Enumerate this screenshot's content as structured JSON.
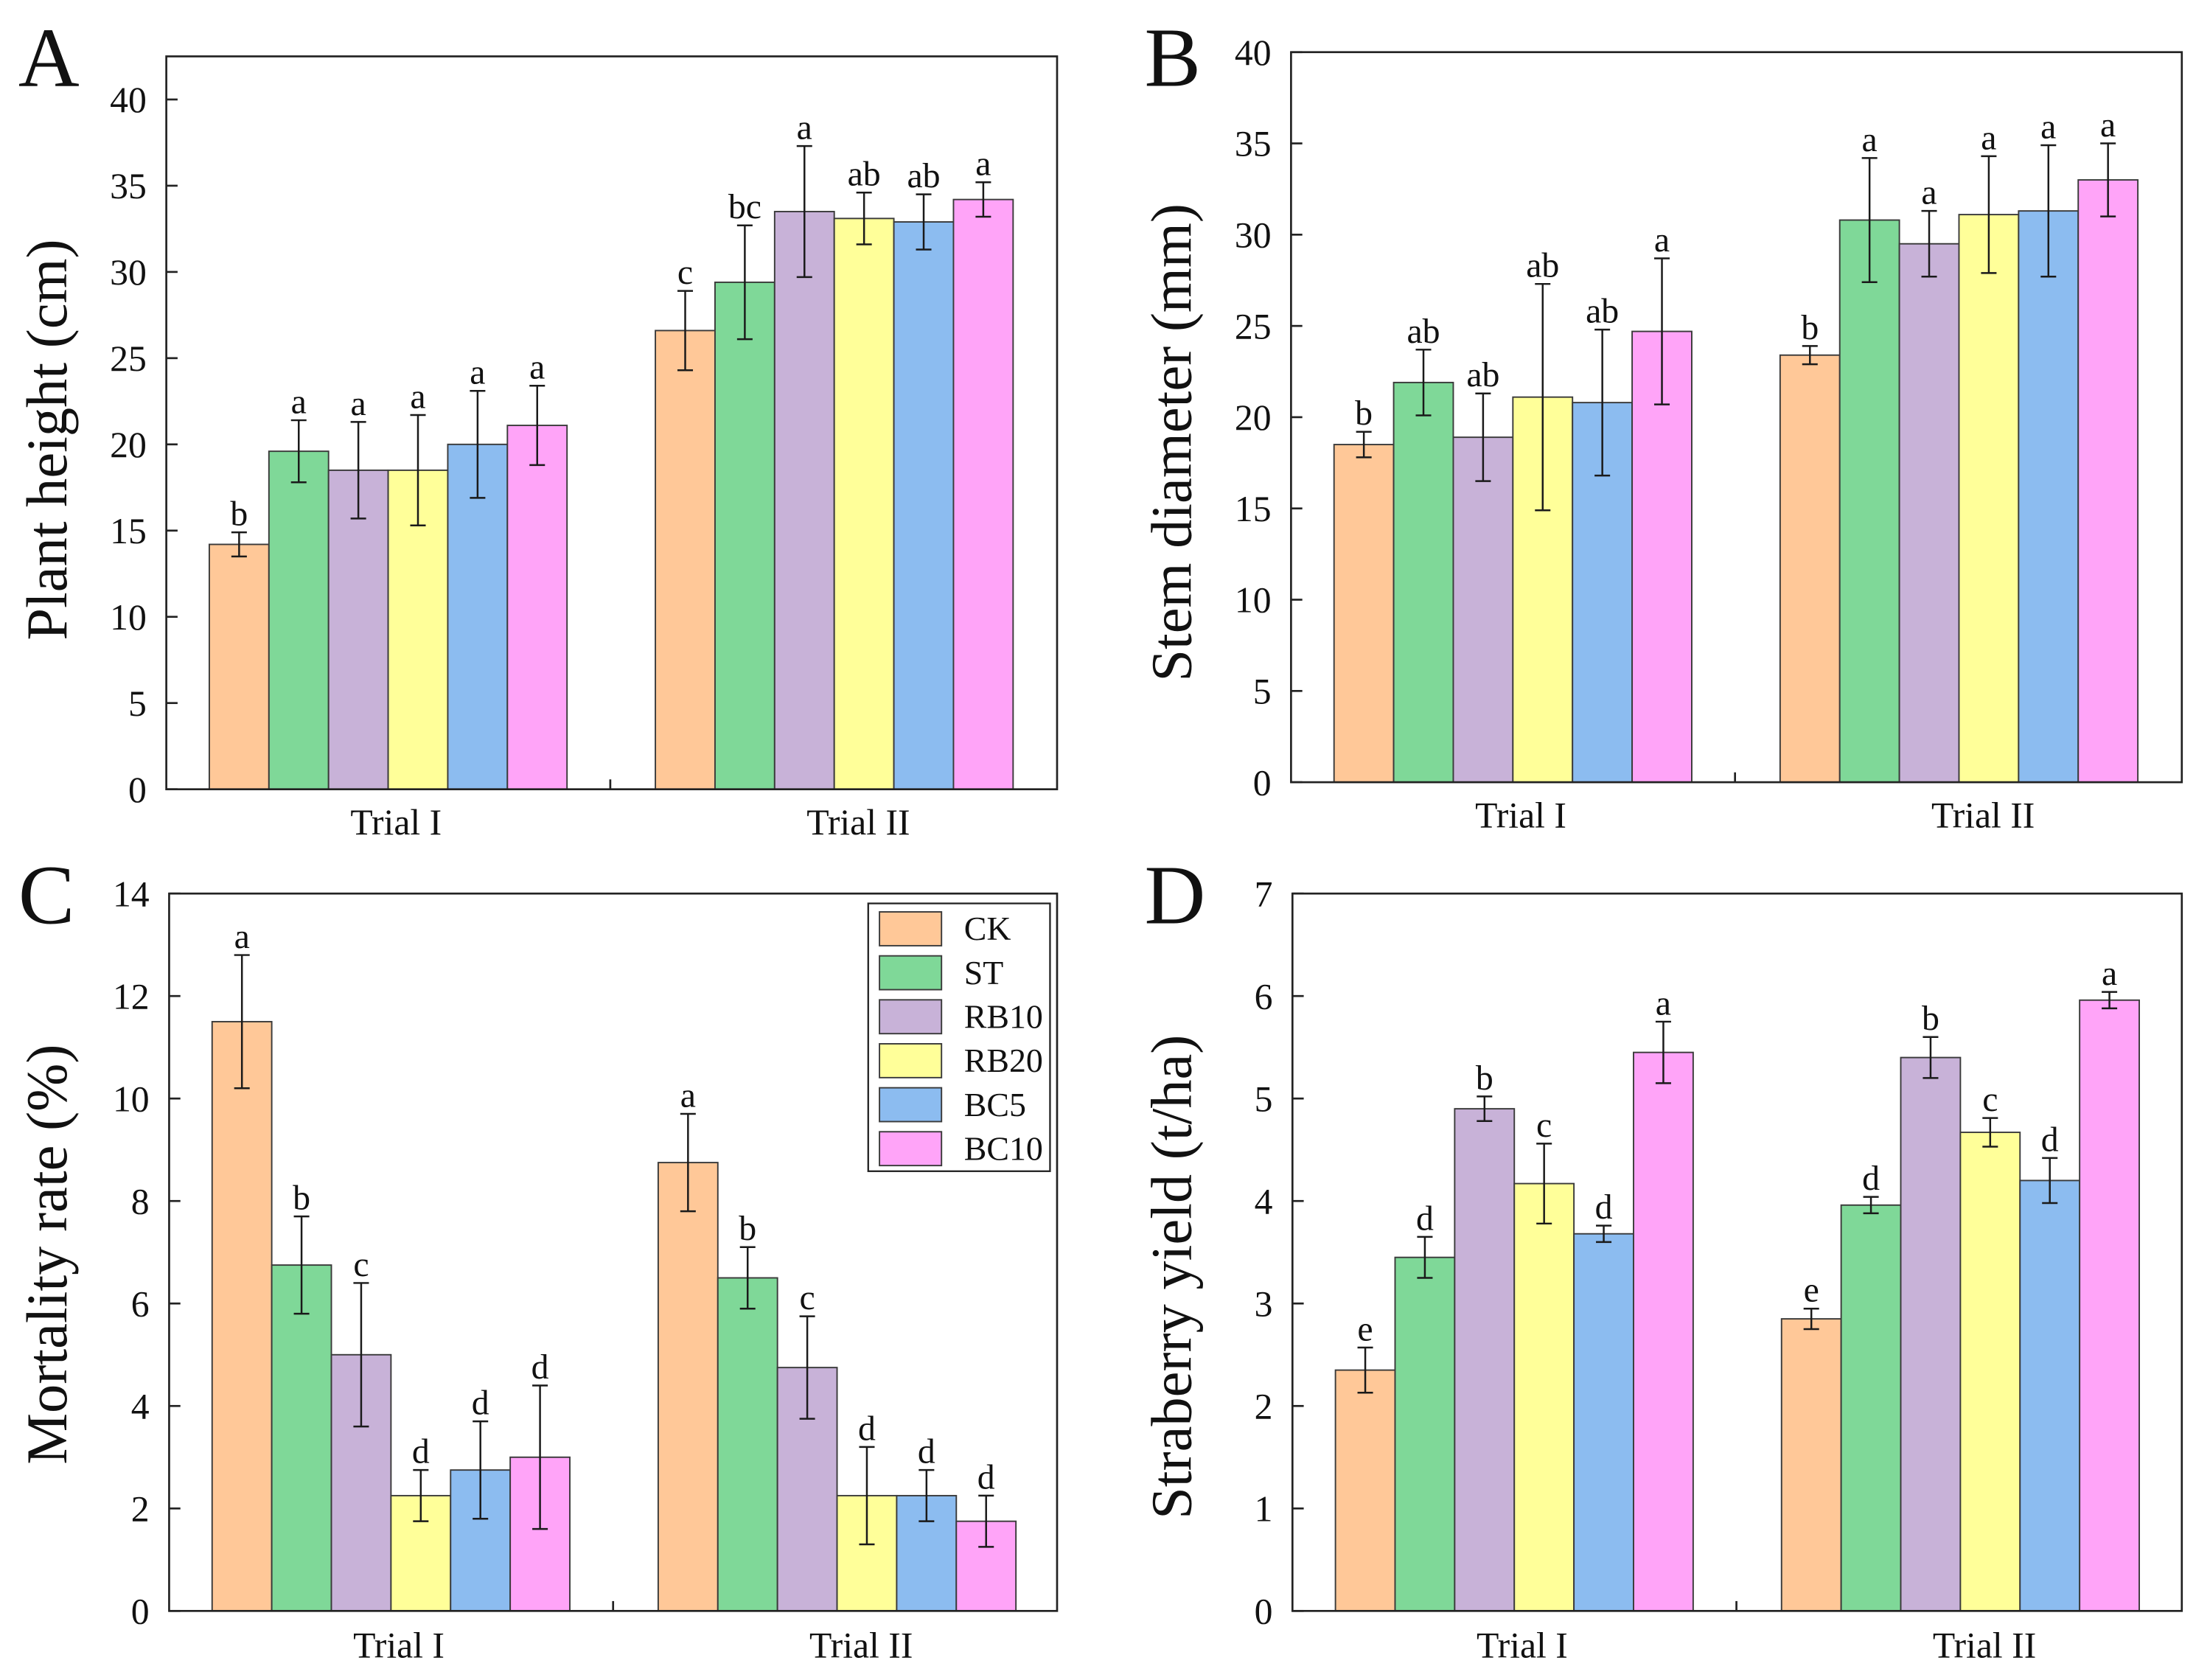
{
  "chart_data": [
    {
      "panel": "A",
      "type": "bar",
      "ylabel": "Plant height (cm)",
      "ylim": [
        0,
        42.5
      ],
      "yticks": [
        0,
        5,
        10,
        15,
        20,
        25,
        30,
        35,
        40
      ],
      "grid": false,
      "categories": [
        "Trial I",
        "Trial II"
      ],
      "series": [
        {
          "name": "CK",
          "color": "#FFC898",
          "values": [
            14.2,
            26.6
          ],
          "errors": [
            0.7,
            2.3
          ],
          "letters": [
            "b",
            "c"
          ]
        },
        {
          "name": "ST",
          "color": "#7FD898",
          "values": [
            19.6,
            29.4
          ],
          "errors": [
            1.8,
            3.3
          ],
          "letters": [
            "a",
            "bc"
          ]
        },
        {
          "name": "RB10",
          "color": "#C8B2D8",
          "values": [
            18.5,
            33.5
          ],
          "errors": [
            2.8,
            3.8
          ],
          "letters": [
            "a",
            "a"
          ]
        },
        {
          "name": "RB20",
          "color": "#FFFF99",
          "values": [
            18.5,
            33.1
          ],
          "errors": [
            3.2,
            1.5
          ],
          "letters": [
            "a",
            "ab"
          ]
        },
        {
          "name": "BC5",
          "color": "#8CBCF0",
          "values": [
            20.0,
            32.9
          ],
          "errors": [
            3.1,
            1.6
          ],
          "letters": [
            "a",
            "ab"
          ]
        },
        {
          "name": "BC10",
          "color": "#FFA4F8",
          "values": [
            21.1,
            34.2
          ],
          "errors": [
            2.3,
            1.0
          ],
          "letters": [
            "a",
            "a"
          ]
        }
      ]
    },
    {
      "panel": "B",
      "type": "bar",
      "ylabel": "Stem diameter (mm)",
      "ylim": [
        0,
        40
      ],
      "yticks": [
        0,
        5,
        10,
        15,
        20,
        25,
        30,
        35,
        40
      ],
      "grid": false,
      "categories": [
        "Trial I",
        "Trial II"
      ],
      "series": [
        {
          "name": "CK",
          "color": "#FFC898",
          "values": [
            18.5,
            23.4
          ],
          "errors": [
            0.7,
            0.5
          ],
          "letters": [
            "b",
            "b"
          ]
        },
        {
          "name": "ST",
          "color": "#7FD898",
          "values": [
            21.9,
            30.8
          ],
          "errors": [
            1.8,
            3.4
          ],
          "letters": [
            "ab",
            "a"
          ]
        },
        {
          "name": "RB10",
          "color": "#C8B2D8",
          "values": [
            18.9,
            29.5
          ],
          "errors": [
            2.4,
            1.8
          ],
          "letters": [
            "ab",
            "a"
          ]
        },
        {
          "name": "RB20",
          "color": "#FFFF99",
          "values": [
            21.1,
            31.1
          ],
          "errors": [
            6.2,
            3.2
          ],
          "letters": [
            "ab",
            "a"
          ]
        },
        {
          "name": "BC5",
          "color": "#8CBCF0",
          "values": [
            20.8,
            31.3
          ],
          "errors": [
            4.0,
            3.6
          ],
          "letters": [
            "ab",
            "a"
          ]
        },
        {
          "name": "BC10",
          "color": "#FFA4F8",
          "values": [
            24.7,
            33.0
          ],
          "errors": [
            4.0,
            2.0
          ],
          "letters": [
            "a",
            "a"
          ]
        }
      ]
    },
    {
      "panel": "C",
      "type": "bar",
      "ylabel": "Mortality rate (%)",
      "ylim": [
        0,
        14
      ],
      "yticks": [
        0,
        2,
        4,
        6,
        8,
        10,
        12,
        14
      ],
      "grid": false,
      "legend": "top-right",
      "categories": [
        "Trial I",
        "Trial II"
      ],
      "series": [
        {
          "name": "CK",
          "color": "#FFC898",
          "values": [
            11.5,
            8.75
          ],
          "errors": [
            1.3,
            0.95
          ],
          "letters": [
            "a",
            "a"
          ]
        },
        {
          "name": "ST",
          "color": "#7FD898",
          "values": [
            6.75,
            6.5
          ],
          "errors": [
            0.95,
            0.6
          ],
          "letters": [
            "b",
            "b"
          ]
        },
        {
          "name": "RB10",
          "color": "#C8B2D8",
          "values": [
            5.0,
            4.75
          ],
          "errors": [
            1.4,
            1.0
          ],
          "letters": [
            "c",
            "c"
          ]
        },
        {
          "name": "RB20",
          "color": "#FFFF99",
          "values": [
            2.25,
            2.25
          ],
          "errors": [
            0.5,
            0.95
          ],
          "letters": [
            "d",
            "d"
          ]
        },
        {
          "name": "BC5",
          "color": "#8CBCF0",
          "values": [
            2.75,
            2.25
          ],
          "errors": [
            0.95,
            0.5
          ],
          "letters": [
            "d",
            "d"
          ]
        },
        {
          "name": "BC10",
          "color": "#FFA4F8",
          "values": [
            3.0,
            1.75
          ],
          "errors": [
            1.4,
            0.5
          ],
          "letters": [
            "d",
            "d"
          ]
        }
      ]
    },
    {
      "panel": "D",
      "type": "bar",
      "ylabel": "Straberry yield (t/ha)",
      "ylim": [
        0,
        7
      ],
      "yticks": [
        0,
        1,
        2,
        3,
        4,
        5,
        6,
        7
      ],
      "grid": false,
      "categories": [
        "Trial I",
        "Trial II"
      ],
      "series": [
        {
          "name": "CK",
          "color": "#FFC898",
          "values": [
            2.35,
            2.85
          ],
          "errors": [
            0.22,
            0.1
          ],
          "letters": [
            "e",
            "e"
          ]
        },
        {
          "name": "ST",
          "color": "#7FD898",
          "values": [
            3.45,
            3.96
          ],
          "errors": [
            0.2,
            0.08
          ],
          "letters": [
            "d",
            "d"
          ]
        },
        {
          "name": "RB10",
          "color": "#C8B2D8",
          "values": [
            4.9,
            5.4
          ],
          "errors": [
            0.12,
            0.2
          ],
          "letters": [
            "b",
            "b"
          ]
        },
        {
          "name": "RB20",
          "color": "#FFFF99",
          "values": [
            4.17,
            4.67
          ],
          "errors": [
            0.39,
            0.14
          ],
          "letters": [
            "c",
            "c"
          ]
        },
        {
          "name": "BC5",
          "color": "#8CBCF0",
          "values": [
            3.68,
            4.2
          ],
          "errors": [
            0.08,
            0.22
          ],
          "letters": [
            "d",
            "d"
          ]
        },
        {
          "name": "BC10",
          "color": "#FFA4F8",
          "values": [
            5.45,
            5.96
          ],
          "errors": [
            0.3,
            0.08
          ],
          "letters": [
            "a",
            "a"
          ]
        }
      ]
    }
  ]
}
